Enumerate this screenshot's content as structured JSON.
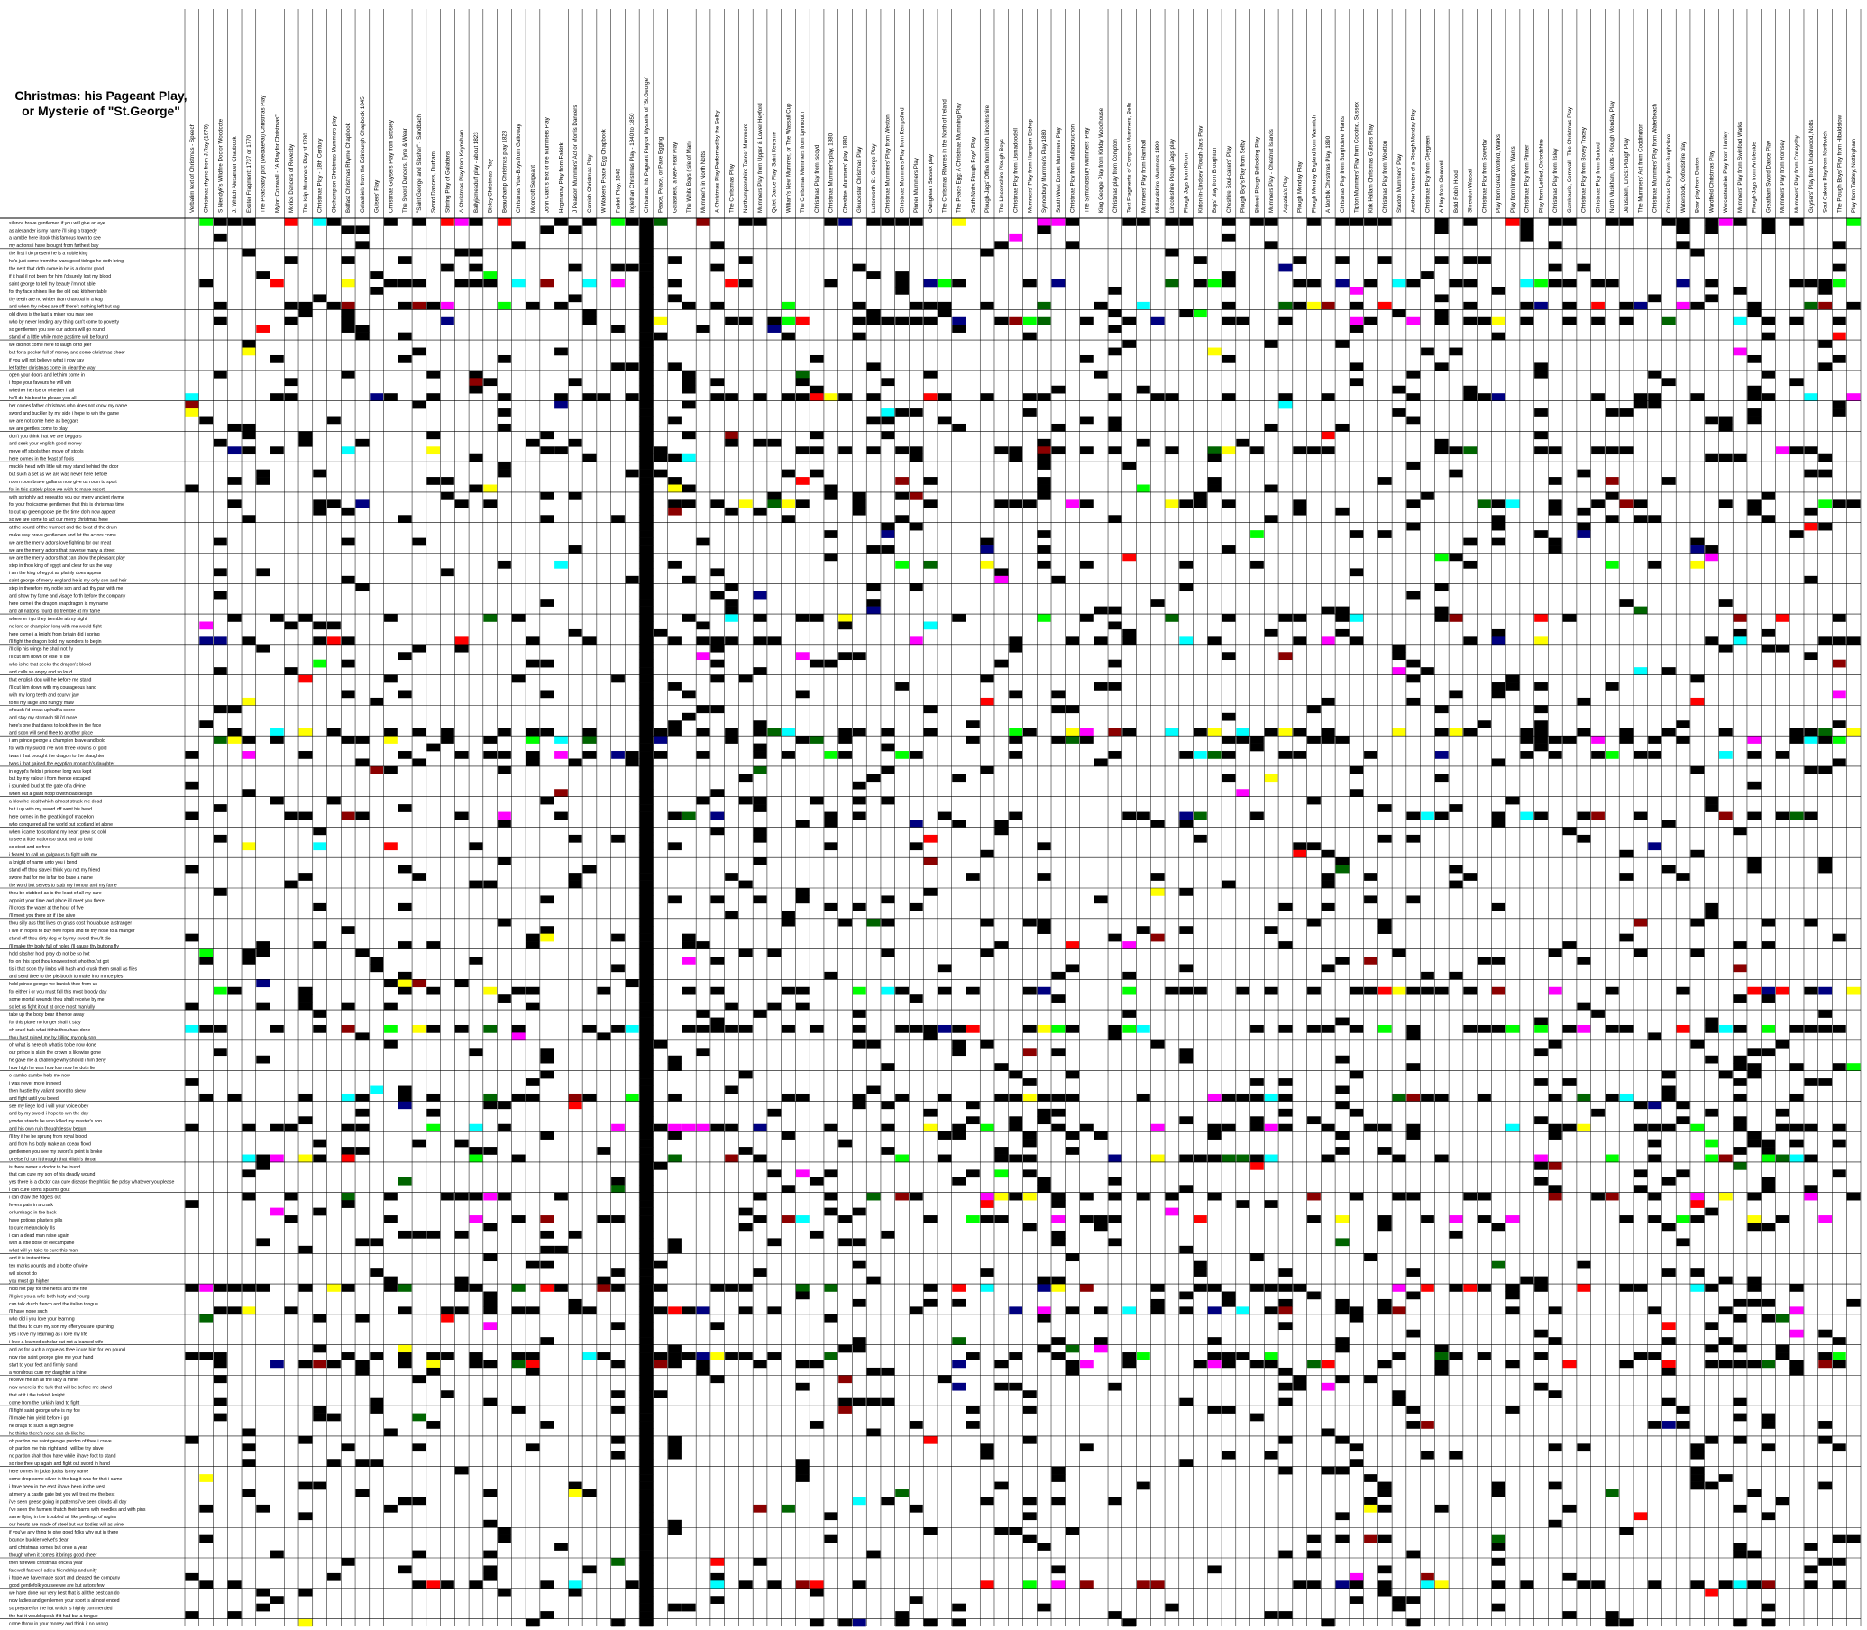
{
  "chart_data": {
    "type": "heatmap",
    "title": "Christmas: his Pageant Play, or Mysterie of \"St.George\"",
    "legend": "none",
    "grid": true,
    "columns": [
      "Verbatim text of Christmas - Speech",
      "Christmas rhyme from J.Ray (1670)",
      "S Niendyk's Wildfire Doctor Woodcote",
      "J. Whitch Alexander Chapbook",
      "Exeter Fragment: 1737 or 1770",
      "The Peaceably plot (Mediaeval) Christmas Play",
      "Mylor: Cornwall - \"A Play for Christmas\"",
      "Morice Dancers of Revesby",
      "The Islip Mummers Play of 1780",
      "Christmas Play - 18th Century",
      "Okehampton Christmas Mummers play",
      "Belfast Christmas Rhyme Chapbook",
      "Galashiels from the Edinburgh Chapbook 1845",
      "Guisers' Play",
      "Christmas Guysers Play from Brosley",
      "The Sword Dancers, Tyne & Wear",
      "\"Saint George and Slasher\" - Sandbach",
      "Sword Dancers, Durham",
      "Stirring Play of Galatians",
      "A Christmas Play from Keynsham",
      "Ballyjamesduff play - about 1823",
      "Bisley Christmas Play",
      "Beauchamp Christmas play 1823",
      "Christmas Yule-Boys from Galloway",
      "Moorcroft Sergeant",
      "John Clark's text of the Mummers Play",
      "Hogmanay Play from Falkirk",
      "J Pearson Mummers' Act or Morris Dancers",
      "Cornish Christmas Play",
      "W Walker's Peace Egg Chapbook",
      "Falkirk Play, 1840",
      "Inglethan Christmas Play - 1840 to 1850",
      "Christmas: his Pageant Play or Mysterie of \"St.George\"",
      "Peace, Peace, or Pace Egging",
      "Galashiels, a New-Year Play",
      "The White Boys (Isle of Man)",
      "Mummer's in North Notts",
      "A Christmas Play Performed by the Selby",
      "The Christmas Play",
      "Northamptonshire Tanner Mummers",
      "Mummers Play from Upper & Lower Heyford",
      "Quiet Dance Play, Saint Keverne",
      "William's New Mummer, or The Wassail Cup",
      "The Christmas Mummers from Lynmouth",
      "Christmas Play from Iscoyd",
      "Christmas Mummer's play, 1880",
      "Cheshire Mummers' play, 1880",
      "Gloucester Christmas Play",
      "Lutterworth St. George Play",
      "Christmas Mummers' Play from Weston",
      "Christmas Mummers Play from Kempsford",
      "Pinner Mummers Play",
      "Ovingdean Sussex play",
      "The Christmas Rhymes in the North of Ireland",
      "The Peace Egg: A Christmas Mumming Play",
      "South-Notts Plough Boys' Play",
      "Plough-Jags' Office from North Lincolnshire",
      "The Lincolnshire Plough Boys",
      "Christmas Play from Lismadoodell",
      "Mummers' Play from Hampton Bishop",
      "Synnoxbury Mummer's Play 1880",
      "South West Dorset Mummers Play",
      "Christmas Play from Mullagrouchon",
      "The Symondsbury Mummers' Play",
      "King George Play from Kirkby Woodhouse",
      "Christmas play from Compton",
      "Text Fragments of Compton Mummers, Bells",
      "Mummers' Play from Harnhall",
      "Midlandshire Mummers 1890",
      "Lincolnshire Plough Jags play",
      "Plough Jags from Kirton",
      "Kirton-in-Lindsey Plough-Jags Play",
      "Boys' play from Broughton",
      "Cheshire Soul-cakers' Play",
      "Plough Boy's Play from Selby",
      "Bidwell Plough Bullocking Play",
      "Mummers Play - Chestnut Islands",
      "Aspatria's Play",
      "Plough Monday Play",
      "Plough Monday England from Wanwich",
      "A Norfolk Christmas Play, 1890",
      "Christmas Play from Burghclere, Hants",
      "Tipton Mummers' Play from Cocking, Sussex",
      "Kirk Hallam Christmas Guisers Play",
      "Christmas Play from Wootton",
      "Staxton Mummers' Play",
      "Another Version of a Plough Monday Play",
      "Christmas Play from Cleygreen",
      "A Play from Clearwell",
      "Bold Robin Hood",
      "Shrewton Wassail",
      "Christmas Play from Sowerby",
      "Play from Great Wolford, Warks",
      "Play from Ilmington, Warks",
      "Christmas Play from Pinner",
      "Play from Lettled, Oxfordshire",
      "Christmas Play from Ilsley",
      "Gamkourie, Cornwall - The Christmas Play",
      "Christmas Play from Bovey Tracey",
      "Christmas Play from Burford",
      "North Muskham, Notts - Plough Monday Play",
      "Jerusalem, Lincs: Plough Play",
      "The Mummers' Act from Coddington",
      "Christmas Mummers' Play from Waterbeach",
      "Christmas Play from Burghclere",
      "Waterstock, Oxfordshire play",
      "Boar play from Duston",
      "Wardfield Christmas Play",
      "Worcestershire Play from Hanley",
      "Mummers' Play from Swinford Warks",
      "Plough-Jags from Ambleside",
      "Greatham Sword Dance Play",
      "Mummers' Play from Romsey",
      "Mummers' Play from Coneysby",
      "Guysers' Play from Underwood, Notts",
      "Soul Cakers Play from Northwich",
      "The Plough Boys' Play from Hibaldstow",
      "Play from Tabitey, Nottingham"
    ],
    "first_column_label": "Verbatim text of Christmas - Speech",
    "lines": [
      "silence brave gentlemen if you will give an eye",
      "as alexander is my name i'll sing a tragedy",
      "a ramble here i took this famous town to see",
      "my actions i have brought from farthest bay",
      "the first i do present he is a noble king",
      "he's just come from the wars good tidings he doth bring",
      "the next that doth come in he is a doctor good",
      "if it had il not been for him i'd surely lost my blood",
      "saint george to tell thy beauty i'm not able",
      "for thy face shines like the old oak kitchen table",
      "thy teeth are no whiter than charcoal in a bag",
      "and when thy robes are off there's nothing left but rag",
      "old dives is the last a miser you may see",
      "who by never lending any thing can't come to poverty",
      "so gentlemen you see our actors will go round",
      "stand of a little while more pastime will be found",
      "we did not come here to laugh or to jeer",
      "but for a pocket full of money and some christmas cheer",
      "if you will not believe what i now say",
      "let father christmas come in clear the way",
      "open your doors and let him come in",
      "i hope your favours he will win",
      "whether he rise or whether i fall",
      "he'll do his best to please you all",
      "her comes father christmas who does not know my name",
      "sword and buckler by my side i hope to win the game",
      "we are not come here as beggars",
      "we are gentles come to play",
      "don't you think that we are beggars",
      "and seek your english good money",
      "move off stools then move off stools",
      "here comes in the feast of fools",
      "muckle head with little wit may stand behind the door",
      "but such a set as we are was never here before",
      "room room brave gallants now give us room to sport",
      "for in this stately place we wish to make resort",
      "with sprightly act repeat to you our merry ancient rhyme",
      "for your frolicsome gentlemen that this is christmas time",
      "to cut up green goose pie the time doth now appear",
      "so we are come to act our merry christmas here",
      "at the sound of the trumpet and the beat of the drum",
      "make way brave gentlemen and let the actors come",
      "we are the merry actors love fighting for our meat",
      "we are the merry actors that traverse many a street",
      "we are the merry actors that can show the pleasant play",
      "step in thou king of egypt and clear for us the way",
      "i am the king of egypt as plainly does appear",
      "saint george of merry england he is my only son and heir",
      "step in therefore my noble son and act thy part with me",
      "and show thy fame and visage forth before the company",
      "here come i the dragon snapdragon is my name",
      "and all nations round do tremble at my fame",
      "where er i go they tremble at my sight",
      "no lord or champion long with me would fight",
      "here come i a knight from britain did i spring",
      "i'll fight the dragon bold my wonders to begin",
      "i'll clip his wings he shall not fly",
      "i'll cut him down or else i'll die",
      "who is he that seeks the dragon's blood",
      "and calls so angry and so loud",
      "that english dog will he before me stand",
      "i'll cut him down with my courageous hand",
      "with my long teeth and scurvy jaw",
      "to fill my large and hungry maw",
      "of such i'd break up half a score",
      "and stay my stomach till i'd more",
      "here's one that dares to look thee in the face",
      "and soon will send thee to another place",
      "i am prince george a champion brave and bold",
      "for with my sword i've won three crowns of gold",
      "twas i that brought the dragon to the slaughter",
      "twas i that gained the egyptian monarch's daughter",
      "in egypt's fields i prisoner long was kept",
      "but by my valour i from thence escaped",
      "i sounded loud at the gate of a divine",
      "when out a giant hopp'd with bad design",
      "a blow he dealt which almost struck me dead",
      "but i up with my sword off went his head",
      "here comes in the great king of macedon",
      "who conquered all the world but scotland let alone",
      "when i came to scotland my heart grew so cold",
      "to see a little nation so stout and so bold",
      "so stout and so free",
      "i feared to call on galgacus to fight with me",
      "a knight of name unto you i bend",
      "stand off thou slave i think you not my friend",
      "swore that for me is far too base a name",
      "the word but serves to stab my honour and my fame",
      "thou be stabbed as is the least of all my care",
      "appoint your time and place i'll meet you there",
      "i'll cross the water at the hour of five",
      "i'll meet you there sir if i be alive",
      "thou silly ass that lives on grass dost thou abuse a stranger",
      "i live in hopes to buy new ropes and tie thy nose to a manger",
      "stand off thou dirty dog or by my sword thou'lt die",
      "i'll make thy body full of holes i'll cause thy buttons fly",
      "hold slasher hold pray do not be so hot",
      "for on this spot thou knowest not who thou'st got",
      "tis i that soon thy limbs will hash and crush them small as flies",
      "and send thee to the pie-booth to make into mince pies",
      "hold prince george we banish thee from us",
      "for either i or you must fall this most bloody day",
      "some mortal wounds thou shalt receive by me",
      "so let us fight it out at once most manfully",
      "take up the body bear it hence away",
      "for this place no longer shall it stay",
      "oh cruel turk what it this thou hast done",
      "thou hast ruined me by killing my only son",
      "oh what is here oh what is to be now done",
      "our prince is slain the crown is likewise gone",
      "he gave me a challenge why should i him deny",
      "how high he was how low now he doth lie",
      "o sambo sambo help me now",
      "i was never more in need",
      "then hastle thy valiant sword to shew",
      "and fight until you bleed",
      "see my liege lord i will your voice obey",
      "and by my sword i hope to win the day",
      "yonder stands he who killed my master's son",
      "and his own ruin thoughtlessly begun",
      "i'll try if he be sprung from royal blood",
      "and from his body make an ocean flood",
      "gentlemen you see my sword's point is broke",
      "or else i'd run it through that villain's throat",
      "is there never a doctor to be found",
      "that can cure my son of his deadly wound",
      "yes there is a doctor can cure disease the phtisic the palsy whatever you please",
      "i can cure corns spasms gout",
      "i can draw the fidgets out",
      "fevers pain in a crack",
      "or lumbago in the back",
      "have potions plasters pills",
      "to cure melancholy ills",
      "i can a dead man raise again",
      "with a little dose of elecampane",
      "what will ye take to cure this man",
      "and it is instant time",
      "ten marks pounds and a bottle of wine",
      "will six not do",
      "you must go higher",
      "hold not pay for the herbs and the fire",
      "i'll give you a wife both lusty and young",
      "can talk dutch french and the italian tongue",
      "i'll have none such",
      "who did i you love your learning",
      "that thou to cure my son my offer you are spurning",
      "yes i love my learning as i love my life",
      "i love a learned scholar but not a learned wife",
      "and as for such a rogue as thee i cure him for ten pound",
      "now rise saint george give me your hand",
      "start to your feet and firmly stand",
      "a wondrous cure my daughter a thine",
      "receive me an all the lady a mine",
      "now where is the turk that will be before me stand",
      "that at it i the turkish knight",
      "come from the turkish land to fight",
      "i'll fight saint george who is my foe",
      "i'll make him yield before i go",
      "he brags to such a high degree",
      "he thinks there's none can do like he",
      "oh pardon me saint george pardon of thee i crave",
      "oh pardon me this night and i will be thy slave",
      "no pardon shalt thou have while i have foot to stand",
      "so rise thee up again and fight out sword in hand",
      "here comes in judas judas is my name",
      "come drop some silver in the bag it was for that i came",
      "i have been in the east i have been in the west",
      "at merry a castle gate but you will treat me the best",
      "i've seen geese going in patterns i've seen clouds all day",
      "i've seen the farmers thatch their barns with needles and with pins",
      "same flying in the troubled air like peelings of rugins",
      "our hearts are made of steel but our bodies will as wine",
      "if you've any thing to give good folks why put in there",
      "bounce buckler velvet's dear",
      "and christmas comes but once a year",
      "though when it comes it brings good cheer",
      "then farewell christmas once a year",
      "farewell farewell adieu friendship and unity",
      "i hope we have made sport and pleased the company",
      "good gentlefolk you see we are but actors few",
      "we have done our very best that is all the best can do",
      "now ladies and gentlemen your sport is almost ended",
      "so prepare for the hat which is highly commended",
      "the hat it would speak if it had but a tongue",
      "come throw in your money and think it no wrong"
    ],
    "colors": {
      "match": "#000000",
      "variant_red": "#ff0000",
      "variant_green": "#00ff00",
      "variant_yellow": "#ffff00",
      "variant_cyan": "#00ffff",
      "variant_magenta": "#ff00ff",
      "variant_darkred": "#8b0000",
      "variant_navy": "#000080",
      "variant_darkgreen": "#006400",
      "grid": "#000000"
    },
    "highlight_column_index": 32
  }
}
